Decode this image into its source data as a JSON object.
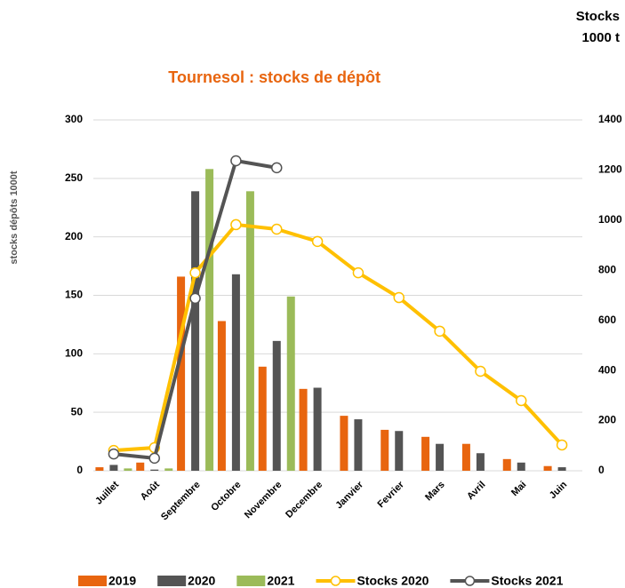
{
  "chart_data": {
    "type": "bar_line",
    "title": "Tournesol : stocks de dépôt",
    "y_label": "stocks dépôts 1000t",
    "y2_label": [
      "Stocks",
      "1000 t"
    ],
    "categories": [
      "Juillet",
      "Août",
      "Septembre",
      "Octobre",
      "Novembre",
      "Decembre",
      "Janvier",
      "Fevrier",
      "Mars",
      "Avril",
      "Mai",
      "Juin"
    ],
    "ylim": [
      0,
      300
    ],
    "yticks": [
      0,
      50,
      100,
      150,
      200,
      250,
      300
    ],
    "y2lim": [
      0,
      1400
    ],
    "y2ticks": [
      0,
      200,
      400,
      600,
      800,
      1000,
      1200,
      1400
    ],
    "grid": true,
    "series": [
      {
        "name": "2019",
        "kind": "bar",
        "color": "#e8650f",
        "values": [
          3,
          7,
          166,
          128,
          89,
          70,
          47,
          35,
          29,
          23,
          10,
          4
        ]
      },
      {
        "name": "2020",
        "kind": "bar",
        "color": "#545454",
        "values": [
          5,
          1,
          239,
          168,
          111,
          71,
          44,
          34,
          23,
          15,
          7,
          3
        ]
      },
      {
        "name": "2021",
        "kind": "bar",
        "color": "#9bbb59",
        "values": [
          2,
          2,
          258,
          239,
          149,
          null,
          null,
          null,
          null,
          null,
          null,
          null
        ]
      },
      {
        "name": "Stocks 2020",
        "kind": "line",
        "axis": "y2",
        "color": "#ffc000",
        "values": [
          81,
          92,
          790,
          982,
          964,
          915,
          790,
          691,
          557,
          397,
          280,
          103
        ]
      },
      {
        "name": "Stocks 2021",
        "kind": "line",
        "axis": "y2",
        "color": "#545454",
        "values": [
          67,
          50,
          688,
          1237,
          1209,
          null,
          null,
          null,
          null,
          null,
          null,
          null
        ]
      }
    ]
  }
}
